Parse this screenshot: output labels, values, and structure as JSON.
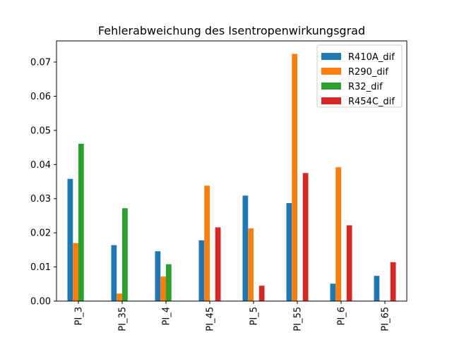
{
  "chart_data": {
    "type": "bar",
    "title": "Fehlerabweichung des Isentropenwirkungsgrad",
    "xlabel": "",
    "ylabel": "",
    "categories": [
      "PI_3",
      "PI_35",
      "PI_4",
      "PI_45",
      "PI_5",
      "PI_55",
      "PI_6",
      "PI_65"
    ],
    "series": [
      {
        "name": "R410A_dif",
        "color": "#1f77b4",
        "values": [
          0.0358,
          0.0164,
          0.0146,
          0.0178,
          0.0309,
          0.0287,
          0.0051,
          0.0074
        ]
      },
      {
        "name": "R290_dif",
        "color": "#ff7f0e",
        "values": [
          0.017,
          0.0022,
          0.0072,
          0.0338,
          0.0213,
          0.0724,
          0.0392,
          0.0
        ]
      },
      {
        "name": "R32_dif",
        "color": "#2ca02c",
        "values": [
          0.0461,
          0.0272,
          0.0108,
          0.0,
          0.0,
          0.0,
          0.0,
          0.0
        ]
      },
      {
        "name": "R454C_dif",
        "color": "#d62728",
        "values": [
          0.0,
          0.0,
          0.0,
          0.0216,
          0.0045,
          0.0375,
          0.0222,
          0.0114
        ]
      }
    ],
    "ylim": [
      0,
      0.0762
    ],
    "yticks": [
      0.0,
      0.01,
      0.02,
      0.03,
      0.04,
      0.05,
      0.06,
      0.07
    ],
    "ytick_labels": [
      "0.00",
      "0.01",
      "0.02",
      "0.03",
      "0.04",
      "0.05",
      "0.06",
      "0.07"
    ],
    "grid": false,
    "legend_position": "top-right"
  }
}
